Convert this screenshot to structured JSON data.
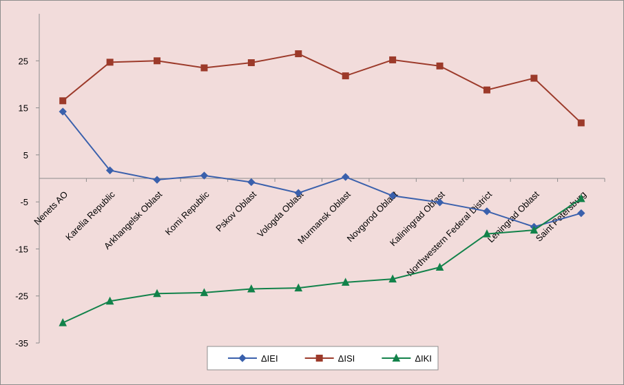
{
  "chart_data": {
    "type": "line",
    "categories": [
      "Nenets AO",
      "Karelia Republic",
      "Arkhangelsk Oblast",
      "Komi Republic",
      "Pskov Oblast",
      "Vologda Oblast",
      "Murmansk Oblast",
      "Novgorod Oblast",
      "Kaliningrad Oblast",
      "Northwestern Federal District",
      "Leningrad Oblast",
      "Saint Petersburg"
    ],
    "series": [
      {
        "name": "ΔIEI",
        "color": "#3a60ac",
        "marker": "diamond",
        "values": [
          14.2,
          1.7,
          -0.3,
          0.6,
          -0.8,
          -3.1,
          0.3,
          -3.7,
          -5.1,
          -7.0,
          -10.3,
          -7.4
        ]
      },
      {
        "name": "ΔISI",
        "color": "#9c3a2a",
        "marker": "square",
        "values": [
          16.5,
          24.7,
          25.0,
          23.5,
          24.6,
          26.5,
          21.8,
          25.2,
          23.9,
          18.8,
          21.3,
          11.8
        ]
      },
      {
        "name": "ΔIKI",
        "color": "#12824a",
        "marker": "triangle",
        "values": [
          -30.7,
          -26.1,
          -24.5,
          -24.3,
          -23.5,
          -23.3,
          -22.1,
          -21.4,
          -18.9,
          -11.8,
          -11.0,
          -4.3
        ]
      }
    ],
    "yticks": [
      "25",
      "15",
      "5",
      "-5",
      "-15",
      "-25",
      "-35"
    ],
    "ylim": [
      -35,
      35
    ],
    "grid": false,
    "legend_position": "bottom-center",
    "colors": {
      "background": "#f2dcdb",
      "axis": "#8c8c8c"
    }
  }
}
